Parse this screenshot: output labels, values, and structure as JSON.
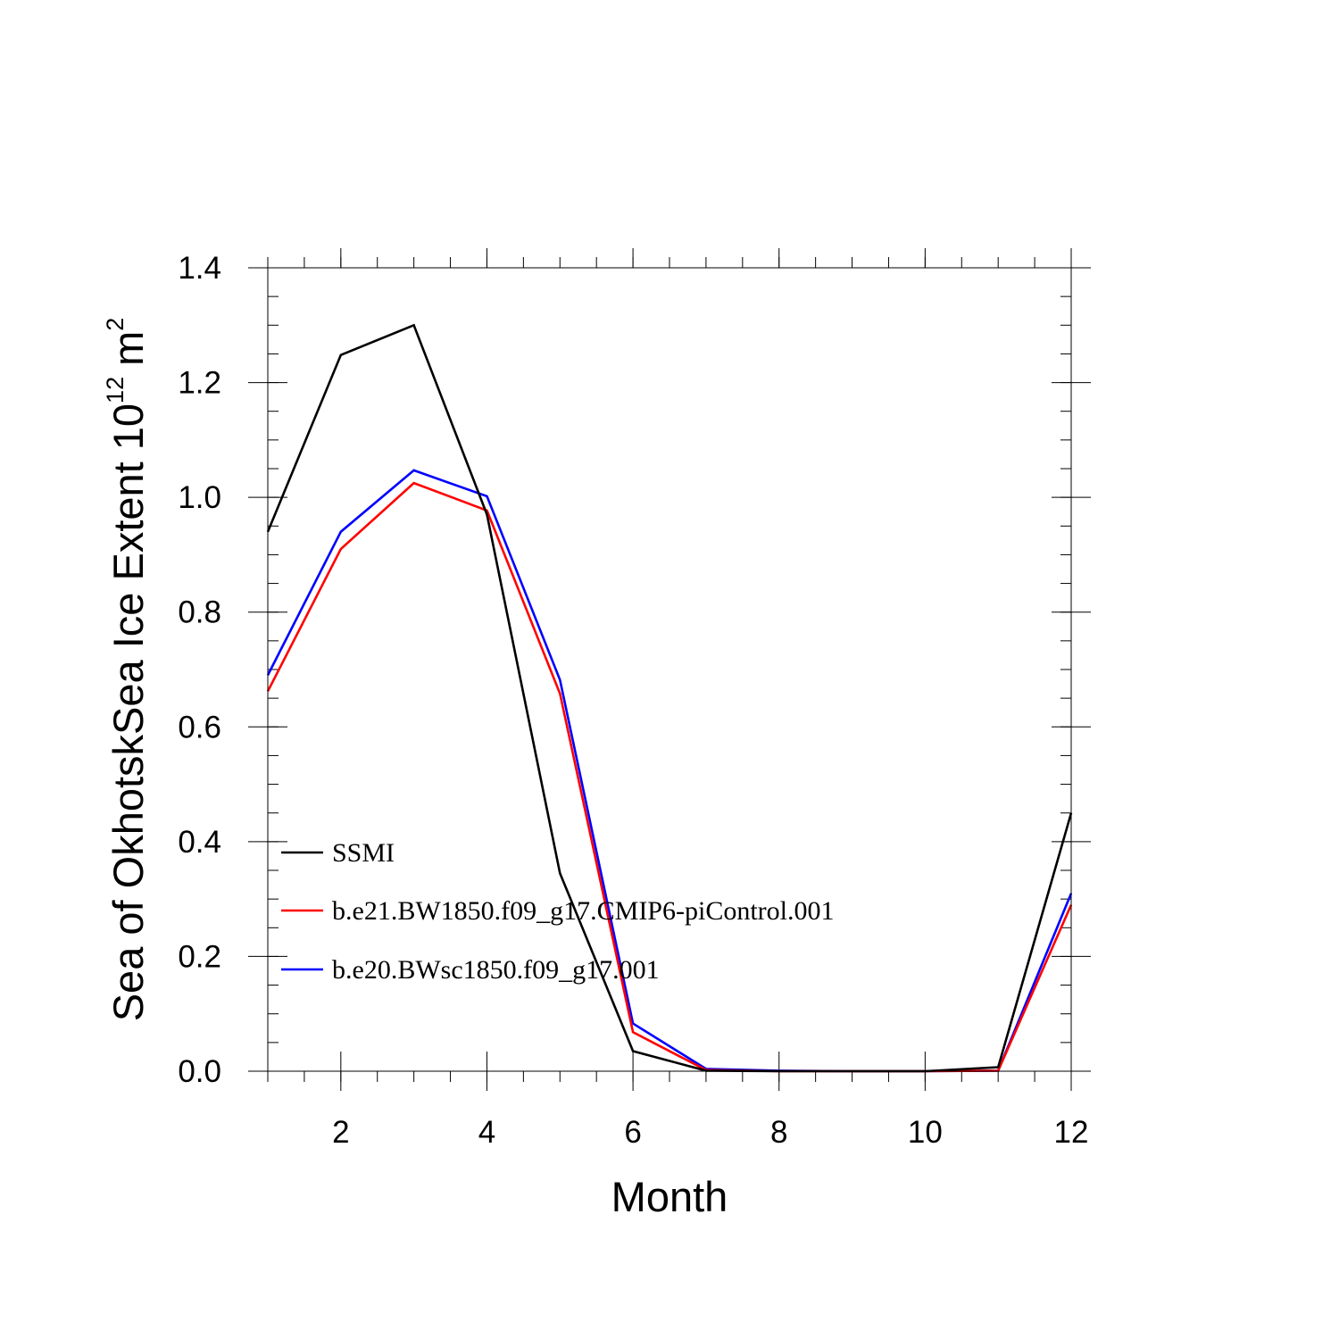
{
  "chart_data": {
    "type": "line",
    "title": "",
    "xlabel": "Month",
    "ylabel_main": "Sea of OkhotskSea Ice Extent 10",
    "ylabel_exp": "12",
    "ylabel_unit": "m",
    "ylabel_unit_exp": "2",
    "xlim": [
      1,
      12
    ],
    "ylim": [
      0,
      1.4
    ],
    "xticks": [
      "2",
      "4",
      "6",
      "8",
      "10",
      "12"
    ],
    "yticks": [
      "0.0",
      "0.2",
      "0.4",
      "0.6",
      "0.8",
      "1.0",
      "1.2",
      "1.4"
    ],
    "legend_position": "lower-left",
    "x": [
      1,
      2,
      3,
      4,
      5,
      6,
      7,
      8,
      9,
      10,
      11,
      12
    ],
    "series": [
      {
        "name": "SSMI",
        "color": "#000000",
        "values": [
          0.94,
          1.248,
          1.3,
          0.97,
          0.345,
          0.035,
          0.001,
          0.0,
          0.0,
          0.0,
          0.007,
          0.45
        ]
      },
      {
        "name": "b.e21.BW1850.f09_g17.CMIP6-piControl.001",
        "color": "#ff0000",
        "values": [
          0.662,
          0.91,
          1.025,
          0.977,
          0.658,
          0.068,
          0.002,
          0.0,
          0.0,
          0.0,
          0.001,
          0.29
        ]
      },
      {
        "name": "b.e20.BWsc1850.f09_g17.001",
        "color": "#0000ff",
        "values": [
          0.69,
          0.94,
          1.047,
          1.002,
          0.682,
          0.083,
          0.004,
          0.001,
          0.0,
          0.0,
          0.001,
          0.31
        ]
      }
    ]
  }
}
